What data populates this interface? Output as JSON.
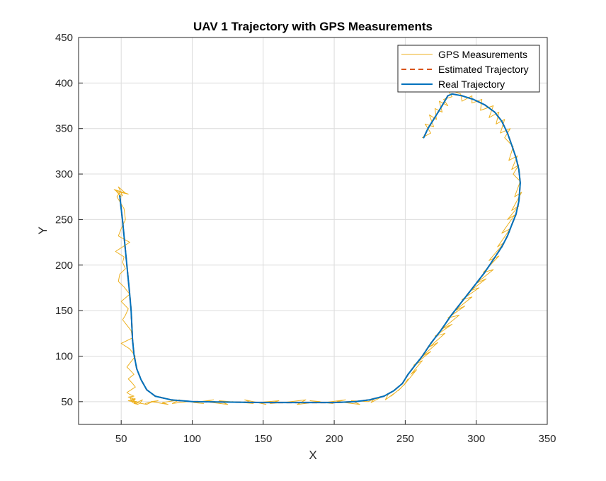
{
  "chart_data": {
    "type": "line",
    "title": "UAV 1 Trajectory with GPS Measurements",
    "xlabel": "X",
    "ylabel": "Y",
    "xlim": [
      20,
      350
    ],
    "ylim": [
      25,
      450
    ],
    "xticks": [
      50,
      100,
      150,
      200,
      250,
      300,
      350
    ],
    "yticks": [
      50,
      100,
      150,
      200,
      250,
      300,
      350,
      400,
      450
    ],
    "grid": true,
    "legend_position": "top-right",
    "series": [
      {
        "name": "GPS Measurements",
        "color": "#EDB120",
        "style": "solid-thin",
        "x": [
          50,
          46,
          53,
          48,
          51,
          45,
          55,
          49,
          47,
          52,
          53,
          50,
          48,
          56,
          46,
          52,
          51,
          53,
          49,
          48,
          52,
          56,
          50,
          55,
          53,
          51,
          54,
          57,
          58,
          50,
          56,
          60,
          57,
          54,
          56,
          59,
          55,
          58,
          60,
          57,
          54,
          56,
          59,
          55,
          58,
          60,
          57,
          56,
          59,
          55,
          58,
          60,
          58,
          57,
          61,
          59,
          59,
          62,
          58,
          57,
          63,
          65,
          61,
          68,
          72,
          67,
          76,
          71,
          83,
          79,
          91,
          86,
          97,
          92,
          108,
          101,
          115,
          109,
          125,
          119,
          134,
          128,
          143,
          137,
          152,
          146,
          161,
          155,
          171,
          164,
          180,
          174,
          190,
          183,
          199,
          193,
          208,
          202,
          218,
          212,
          224,
          228,
          226,
          233,
          238,
          236,
          243,
          240,
          247,
          245,
          250,
          252,
          249,
          258,
          254,
          262,
          256,
          268,
          262,
          273,
          267,
          278,
          271,
          283,
          276,
          288,
          280,
          292,
          285,
          297,
          290,
          302,
          296,
          307,
          300,
          312,
          305,
          316,
          309,
          320,
          315,
          324,
          318,
          327,
          322,
          330,
          325,
          332,
          327,
          331,
          326,
          330,
          325,
          329,
          323,
          326,
          320,
          324,
          317,
          320,
          314,
          316,
          309,
          312,
          303,
          304,
          297,
          297,
          290,
          289,
          282,
          284,
          281,
          283,
          277,
          280,
          274,
          276,
          271,
          272,
          267,
          270,
          264,
          268,
          262
        ],
        "y": [
          275,
          282,
          279,
          286,
          276,
          283,
          278,
          280,
          275,
          262,
          250,
          240,
          232,
          225,
          215,
          209,
          203,
          196,
          190,
          182,
          176,
          168,
          160,
          152,
          145,
          140,
          134,
          128,
          120,
          114,
          108,
          100,
          94,
          88,
          85,
          80,
          75,
          70,
          66,
          63,
          60,
          58,
          56,
          55,
          54,
          53,
          52,
          55,
          52,
          51,
          50,
          53,
          49,
          51,
          50,
          49,
          48,
          47,
          50,
          51,
          48,
          52,
          49,
          47,
          50,
          48,
          51,
          50,
          47,
          49,
          52,
          48,
          50,
          51,
          48,
          49,
          52,
          50,
          47,
          51,
          49,
          50,
          48,
          52,
          47,
          49,
          51,
          48,
          50,
          49,
          52,
          47,
          50,
          51,
          48,
          49,
          52,
          50,
          47,
          51,
          50,
          53,
          49,
          55,
          58,
          52,
          60,
          56,
          65,
          62,
          70,
          75,
          68,
          85,
          80,
          95,
          90,
          105,
          100,
          115,
          110,
          125,
          122,
          135,
          130,
          145,
          142,
          155,
          150,
          165,
          162,
          175,
          172,
          185,
          180,
          195,
          192,
          210,
          205,
          225,
          220,
          240,
          235,
          255,
          250,
          265,
          260,
          280,
          275,
          292,
          300,
          310,
          305,
          320,
          315,
          330,
          340,
          350,
          345,
          360,
          355,
          368,
          362,
          375,
          370,
          382,
          378,
          386,
          380,
          388,
          392,
          395,
          390,
          385,
          382,
          375,
          380,
          368,
          372,
          360,
          365,
          352,
          355,
          345,
          340
        ]
      },
      {
        "name": "Estimated Trajectory",
        "color": "#D95319",
        "style": "dashed",
        "x": [
          49,
          50,
          51,
          52,
          53,
          54,
          55,
          56,
          57,
          57.5,
          58,
          59,
          61,
          64,
          68,
          74,
          85,
          100,
          150,
          200,
          215,
          225,
          235,
          242,
          248,
          252,
          256,
          262,
          268,
          275,
          282,
          290,
          298,
          306,
          312,
          318,
          322,
          325,
          328,
          330,
          331,
          330,
          328,
          325,
          322,
          318,
          313,
          306,
          298,
          290,
          283,
          280,
          277,
          274,
          270,
          266,
          263
        ],
        "y": [
          276,
          262,
          248,
          232,
          216,
          200,
          184,
          168,
          150,
          134,
          118,
          102,
          86,
          74,
          63,
          56,
          52,
          50,
          49,
          49,
          50,
          52,
          56,
          62,
          70,
          80,
          88,
          100,
          114,
          128,
          144,
          160,
          176,
          192,
          206,
          220,
          232,
          244,
          256,
          270,
          290,
          305,
          318,
          332,
          345,
          358,
          368,
          376,
          382,
          386,
          388,
          386,
          378,
          370,
          360,
          350,
          340
        ]
      },
      {
        "name": "Real Trajectory",
        "color": "#0072BD",
        "style": "solid",
        "x": [
          49,
          50,
          51,
          52,
          53,
          54,
          55,
          56,
          57,
          57.5,
          58,
          59,
          61,
          64,
          68,
          74,
          85,
          100,
          150,
          200,
          215,
          225,
          235,
          242,
          248,
          252,
          256,
          262,
          268,
          275,
          282,
          290,
          298,
          306,
          312,
          318,
          322,
          325,
          328,
          330,
          331,
          330,
          328,
          325,
          322,
          318,
          313,
          306,
          298,
          290,
          283,
          280,
          277,
          274,
          270,
          266,
          263
        ],
        "y": [
          276,
          262,
          248,
          232,
          216,
          200,
          184,
          168,
          150,
          134,
          118,
          102,
          86,
          74,
          63,
          56,
          52,
          50,
          49,
          49,
          50,
          52,
          56,
          62,
          70,
          80,
          88,
          100,
          114,
          128,
          144,
          160,
          176,
          192,
          206,
          220,
          232,
          244,
          256,
          270,
          290,
          305,
          318,
          332,
          345,
          358,
          368,
          376,
          382,
          386,
          388,
          386,
          378,
          370,
          360,
          350,
          340
        ]
      }
    ]
  }
}
